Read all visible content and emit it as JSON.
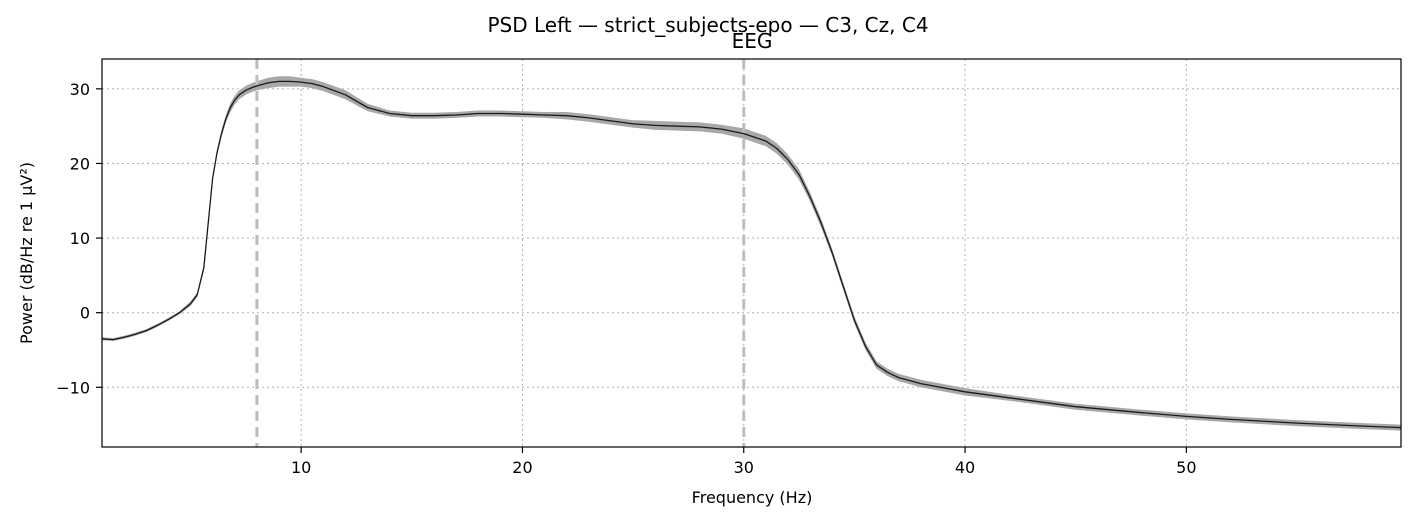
{
  "figure_title": "PSD Left — strict_subjects-epo — C3, Cz, C4",
  "chart_data": {
    "type": "line",
    "title": "EEG",
    "xlabel": "Frequency (Hz)",
    "ylabel": "Power (dB/Hz re 1 µV²)",
    "xlim": [
      1,
      59.7
    ],
    "ylim": [
      -18,
      34
    ],
    "xticks": [
      10,
      20,
      30,
      40,
      50
    ],
    "yticks": [
      -10,
      0,
      10,
      20,
      30
    ],
    "grid": true,
    "band_markers_hz": [
      8,
      30
    ],
    "colors": {
      "line": "#1a1a1a",
      "band": "#a8a8a8",
      "grid": "#b0b0b0",
      "marker": "#bdbdbd"
    },
    "series": [
      {
        "x": [
          1,
          1.5,
          2,
          2.5,
          3,
          3.5,
          4,
          4.5,
          5,
          5.3,
          5.6,
          5.8,
          6.0,
          6.2,
          6.4,
          6.6,
          6.8,
          7.0,
          7.2,
          7.5,
          7.8,
          8.0,
          8.5,
          9,
          9.5,
          10,
          10.5,
          11,
          12,
          13,
          14,
          15,
          16,
          17,
          18,
          19,
          20,
          21,
          22,
          23,
          24,
          25,
          26,
          27,
          28,
          29,
          30,
          31,
          31.5,
          32,
          32.5,
          33,
          33.5,
          34,
          34.5,
          35,
          35.5,
          36,
          36.5,
          37,
          38,
          40,
          42,
          45,
          48,
          50,
          52,
          55,
          58,
          59.7
        ],
        "y": [
          -3.5,
          -3.6,
          -3.3,
          -2.9,
          -2.4,
          -1.7,
          -0.9,
          0,
          1.2,
          2.4,
          6,
          12,
          18,
          21.5,
          24,
          26,
          27.5,
          28.5,
          29.2,
          29.8,
          30.2,
          30.4,
          30.8,
          31.0,
          31.0,
          30.9,
          30.7,
          30.3,
          29.2,
          27.5,
          26.7,
          26.4,
          26.4,
          26.5,
          26.7,
          26.7,
          26.6,
          26.5,
          26.4,
          26.1,
          25.7,
          25.3,
          25.1,
          25.0,
          24.9,
          24.6,
          24.0,
          23.0,
          22.0,
          20.5,
          18.5,
          15.5,
          12,
          8,
          3.5,
          -1,
          -4.5,
          -7,
          -8.0,
          -8.7,
          -9.5,
          -10.6,
          -11.4,
          -12.6,
          -13.4,
          -13.9,
          -14.3,
          -14.8,
          -15.2,
          -15.4
        ],
        "band_halfwidth": [
          0.2,
          0.2,
          0.2,
          0.2,
          0.2,
          0.2,
          0.2,
          0.2,
          0.3,
          0.3,
          0.4,
          0.4,
          0.4,
          0.4,
          0.5,
          0.5,
          0.6,
          0.6,
          0.6,
          0.6,
          0.6,
          0.6,
          0.7,
          0.7,
          0.7,
          0.6,
          0.6,
          0.6,
          0.6,
          0.5,
          0.4,
          0.4,
          0.4,
          0.4,
          0.4,
          0.4,
          0.4,
          0.4,
          0.5,
          0.5,
          0.5,
          0.5,
          0.6,
          0.6,
          0.6,
          0.6,
          0.7,
          0.7,
          0.7,
          0.7,
          0.7,
          0.6,
          0.6,
          0.5,
          0.5,
          0.5,
          0.5,
          0.5,
          0.5,
          0.5,
          0.5,
          0.5,
          0.4,
          0.4,
          0.4,
          0.4,
          0.4,
          0.4,
          0.4,
          0.4
        ]
      }
    ]
  }
}
